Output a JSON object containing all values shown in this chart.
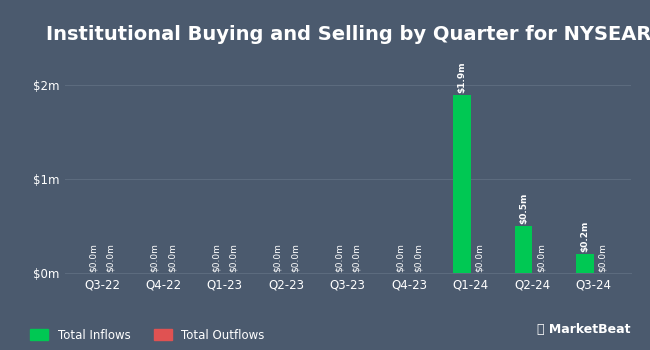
{
  "title": "Institutional Buying and Selling by Quarter for NYSEARCA:BMVP",
  "quarters": [
    "Q3-22",
    "Q4-22",
    "Q1-23",
    "Q2-23",
    "Q3-23",
    "Q4-23",
    "Q1-24",
    "Q2-24",
    "Q3-24"
  ],
  "inflows": [
    0.0,
    0.0,
    0.0,
    0.0,
    0.0,
    0.0,
    1.9,
    0.5,
    0.2
  ],
  "outflows": [
    0.0,
    0.0,
    0.0,
    0.0,
    0.0,
    0.0,
    0.0,
    0.0,
    0.0
  ],
  "inflow_labels": [
    "$0.0m",
    "$0.0m",
    "$0.0m",
    "$0.0m",
    "$0.0m",
    "$0.0m",
    "$1.9m",
    "$0.5m",
    "$0.2m"
  ],
  "outflow_labels": [
    "$0.0m",
    "$0.0m",
    "$0.0m",
    "$0.0m",
    "$0.0m",
    "$0.0m",
    "$0.0m",
    "$0.0m",
    "$0.0m"
  ],
  "inflow_color": "#00c853",
  "outflow_color": "#e05252",
  "bg_color": "#4b5a6e",
  "text_color": "#ffffff",
  "grid_color": "#5c6b7e",
  "ylabel_ticks": [
    "$0m",
    "$1m",
    "$2m"
  ],
  "ylabel_vals": [
    0,
    1,
    2
  ],
  "ylim": [
    0,
    2.35
  ],
  "bar_width": 0.28,
  "title_fontsize": 14,
  "tick_fontsize": 8.5,
  "label_fontsize": 6.5,
  "legend_fontsize": 8.5
}
